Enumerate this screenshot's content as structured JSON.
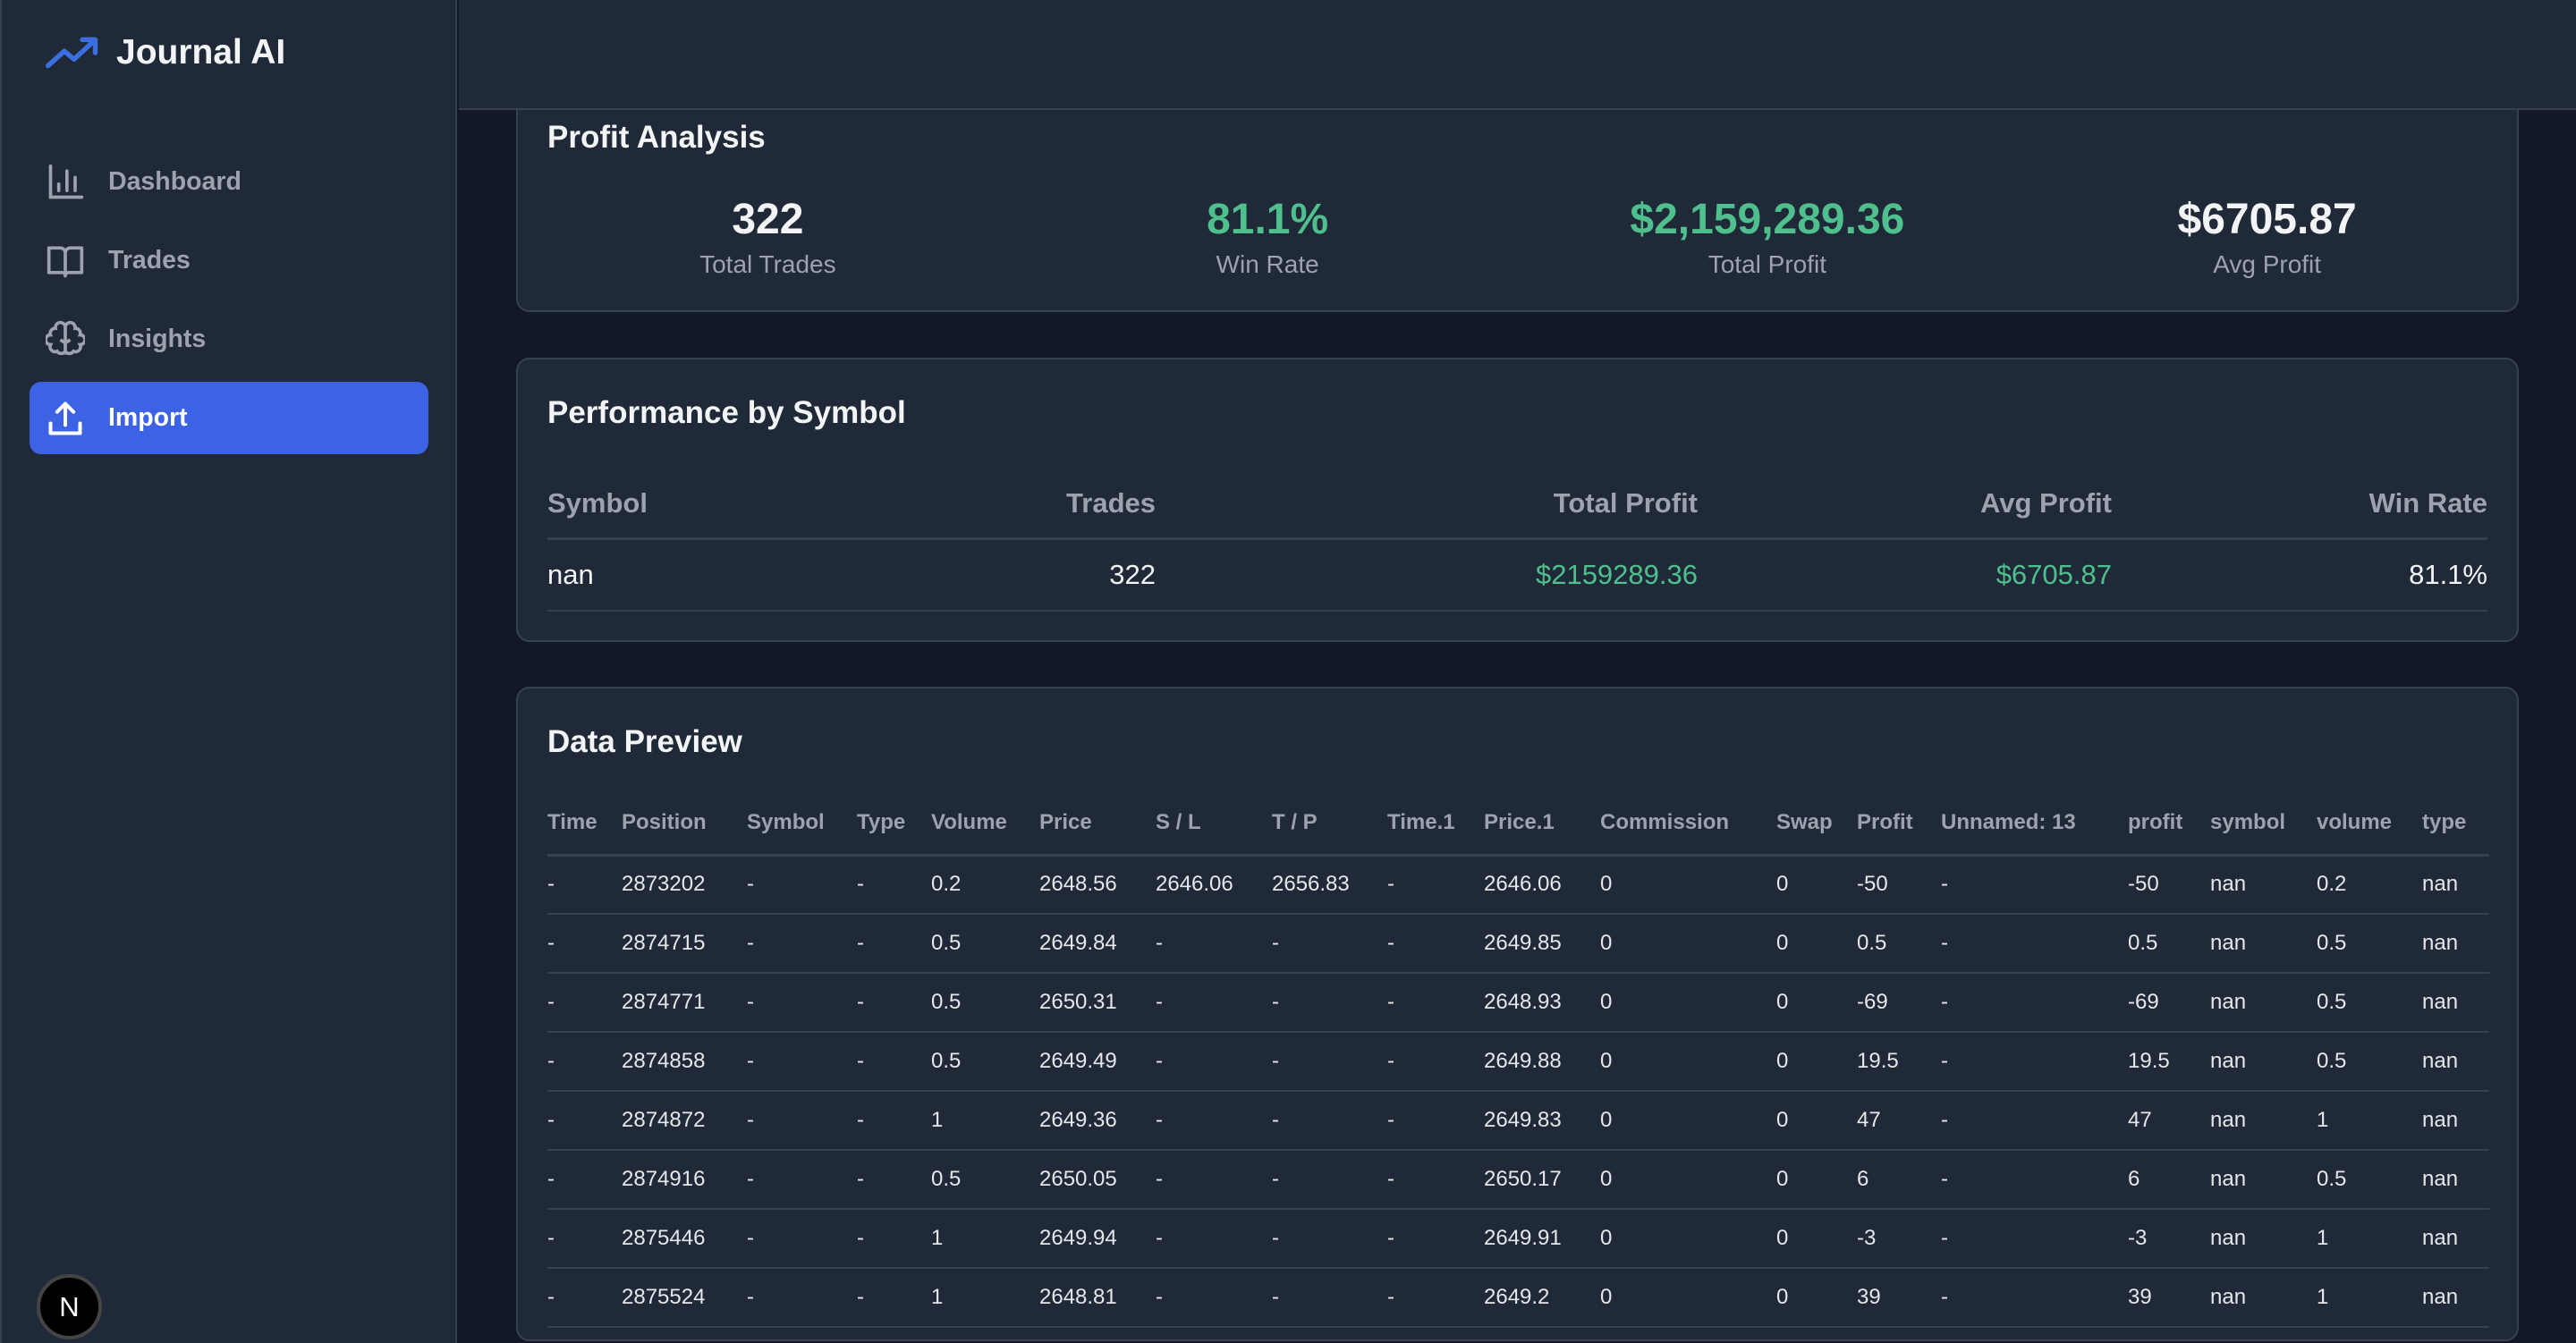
{
  "app": {
    "title": "Journal AI"
  },
  "sidebar": {
    "items": [
      {
        "label": "Dashboard",
        "icon": "bar-chart-icon"
      },
      {
        "label": "Trades",
        "icon": "book-icon"
      },
      {
        "label": "Insights",
        "icon": "brain-icon"
      },
      {
        "label": "Import",
        "icon": "upload-icon",
        "active": true
      }
    ]
  },
  "avatar": {
    "letter": "N"
  },
  "profit_analysis": {
    "title": "Profit Analysis",
    "stats": [
      {
        "value": "322",
        "label": "Total Trades"
      },
      {
        "value": "81.1%",
        "label": "Win Rate"
      },
      {
        "value": "$2,159,289.36",
        "label": "Total Profit"
      },
      {
        "value": "$6705.87",
        "label": "Avg Profit"
      }
    ]
  },
  "performance": {
    "title": "Performance by Symbol",
    "headers": [
      "Symbol",
      "Trades",
      "Total Profit",
      "Avg Profit",
      "Win Rate"
    ],
    "rows": [
      [
        "nan",
        "322",
        "$2159289.36",
        "$6705.87",
        "81.1%"
      ]
    ]
  },
  "preview": {
    "title": "Data Preview",
    "headers": [
      "Time",
      "Position",
      "Symbol",
      "Type",
      "Volume",
      "Price",
      "S / L",
      "T / P",
      "Time.1",
      "Price.1",
      "Commission",
      "Swap",
      "Profit",
      "Unnamed: 13",
      "profit",
      "symbol",
      "volume",
      "type"
    ],
    "rows": [
      [
        "-",
        "2873202",
        "-",
        "-",
        "0.2",
        "2648.56",
        "2646.06",
        "2656.83",
        "-",
        "2646.06",
        "0",
        "0",
        "-50",
        "-",
        "-50",
        "nan",
        "0.2",
        "nan"
      ],
      [
        "-",
        "2874715",
        "-",
        "-",
        "0.5",
        "2649.84",
        "-",
        "-",
        "-",
        "2649.85",
        "0",
        "0",
        "0.5",
        "-",
        "0.5",
        "nan",
        "0.5",
        "nan"
      ],
      [
        "-",
        "2874771",
        "-",
        "-",
        "0.5",
        "2650.31",
        "-",
        "-",
        "-",
        "2648.93",
        "0",
        "0",
        "-69",
        "-",
        "-69",
        "nan",
        "0.5",
        "nan"
      ],
      [
        "-",
        "2874858",
        "-",
        "-",
        "0.5",
        "2649.49",
        "-",
        "-",
        "-",
        "2649.88",
        "0",
        "0",
        "19.5",
        "-",
        "19.5",
        "nan",
        "0.5",
        "nan"
      ],
      [
        "-",
        "2874872",
        "-",
        "-",
        "1",
        "2649.36",
        "-",
        "-",
        "-",
        "2649.83",
        "0",
        "0",
        "47",
        "-",
        "47",
        "nan",
        "1",
        "nan"
      ],
      [
        "-",
        "2874916",
        "-",
        "-",
        "0.5",
        "2650.05",
        "-",
        "-",
        "-",
        "2650.17",
        "0",
        "0",
        "6",
        "-",
        "6",
        "nan",
        "0.5",
        "nan"
      ],
      [
        "-",
        "2875446",
        "-",
        "-",
        "1",
        "2649.94",
        "-",
        "-",
        "-",
        "2649.91",
        "0",
        "0",
        "-3",
        "-",
        "-3",
        "nan",
        "1",
        "nan"
      ],
      [
        "-",
        "2875524",
        "-",
        "-",
        "1",
        "2648.81",
        "-",
        "-",
        "-",
        "2649.2",
        "0",
        "0",
        "39",
        "-",
        "39",
        "nan",
        "1",
        "nan"
      ]
    ]
  },
  "colors": {
    "accent": "#3b63e3",
    "positive": "#4fc08d",
    "bg": "#111827",
    "card": "#1f2937"
  }
}
